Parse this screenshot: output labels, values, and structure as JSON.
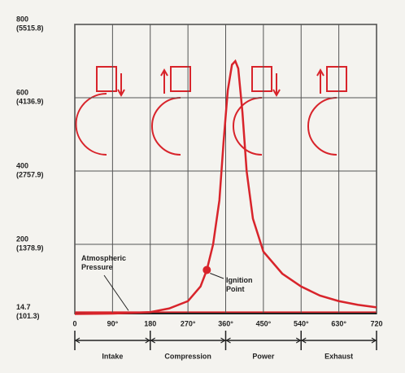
{
  "chart_data": {
    "type": "line",
    "x": [
      0,
      90,
      180,
      225,
      270,
      300,
      315,
      330,
      345,
      355,
      365,
      375,
      383,
      390,
      400,
      410,
      425,
      450,
      495,
      540,
      585,
      630,
      675,
      720
    ],
    "values": [
      10,
      11,
      15,
      25,
      45,
      85,
      130,
      200,
      320,
      480,
      620,
      690,
      700,
      680,
      560,
      400,
      270,
      180,
      120,
      85,
      60,
      45,
      35,
      28
    ],
    "color": "#d8242b",
    "xlim": [
      0,
      720
    ],
    "xticks": [
      0,
      {
        "value": 90,
        "label": "90°"
      },
      180,
      {
        "value": 270,
        "label": "270°"
      },
      {
        "value": 360,
        "label": "360°"
      },
      {
        "value": 450,
        "label": "450°"
      },
      {
        "value": 540,
        "label": "540°"
      },
      {
        "value": 630,
        "label": "630°"
      },
      720
    ],
    "ylim": [
      0,
      800
    ],
    "yticks": [
      14.7,
      200,
      400,
      600,
      800
    ],
    "ytick_kpa_labels": [
      "(101.3)",
      "(1378.9)",
      "(2757.9)",
      "(4136.9)",
      "(5515.8)"
    ],
    "phases": [
      "Intake",
      "Compression",
      "Power",
      "Exhaust"
    ],
    "annotations": {
      "atmospheric": "Atmospheric Pressure",
      "ignition": "Ignition Point"
    },
    "ignition_index": 6,
    "grid": true
  }
}
